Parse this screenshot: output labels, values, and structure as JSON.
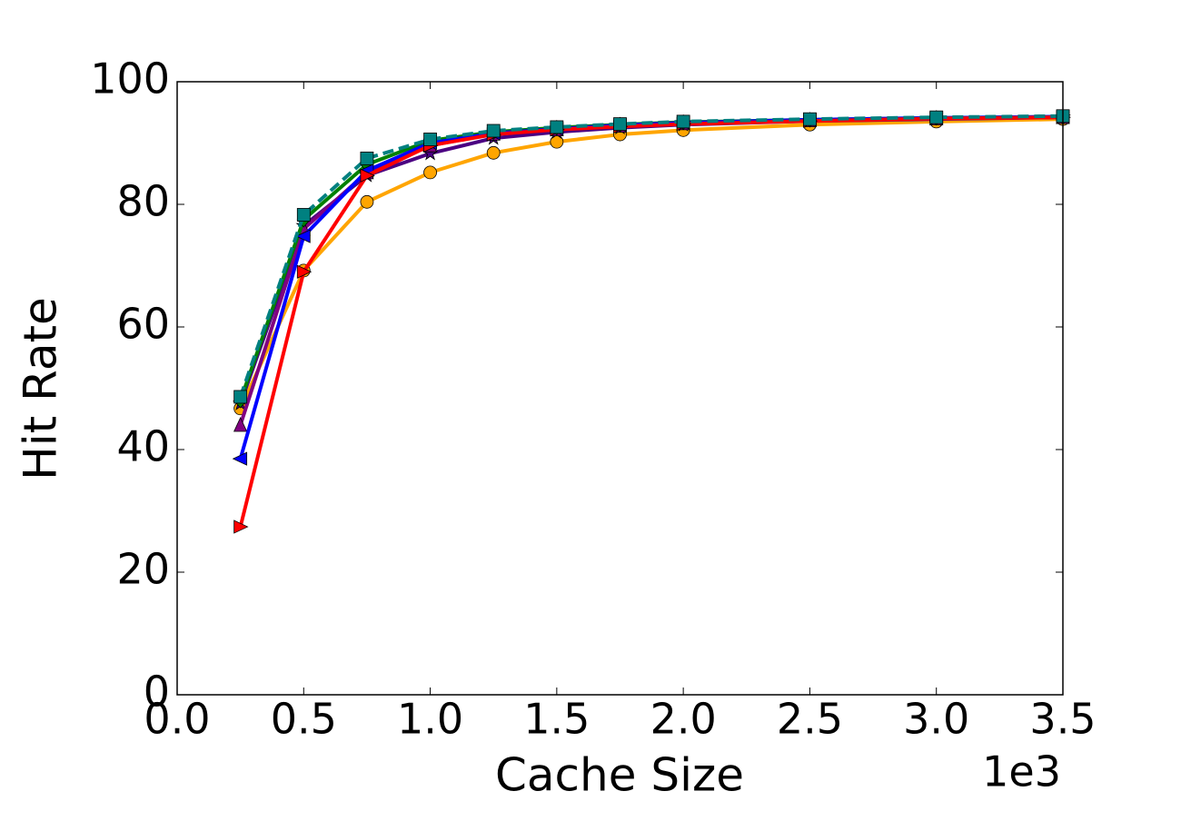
{
  "chart_data": {
    "type": "line",
    "xlabel": "Cache Size",
    "ylabel": "Hit Rate",
    "x_offset_label": "1e3",
    "x": [
      0.25,
      0.5,
      0.75,
      1.0,
      1.25,
      1.5,
      1.75,
      2.0,
      2.5,
      3.0,
      3.5
    ],
    "xlim": [
      0,
      3.5
    ],
    "xticks": [
      {
        "value": 0,
        "label": "0.0"
      },
      {
        "value": 0.5,
        "label": "0.5"
      },
      {
        "value": 1,
        "label": "1.0"
      },
      {
        "value": 1.5,
        "label": "1.5"
      },
      {
        "value": 2,
        "label": "2.0"
      },
      {
        "value": 2.5,
        "label": "2.5"
      },
      {
        "value": 3,
        "label": "3.0"
      },
      {
        "value": 3.5,
        "label": "3.5"
      }
    ],
    "ylim": [
      0,
      100
    ],
    "yticks": [
      0,
      20,
      40,
      60,
      80,
      100
    ],
    "grid": false,
    "series": [
      {
        "color": "#ffa500",
        "marker": "circle",
        "dashed": false,
        "values": [
          46.7,
          69.2,
          80.4,
          85.2,
          88.4,
          90.2,
          91.4,
          92.1,
          93.0,
          93.5,
          93.9
        ]
      },
      {
        "color": "#4b0082",
        "marker": "star",
        "dashed": false,
        "values": [
          47.5,
          76.5,
          84.7,
          88.3,
          90.8,
          91.8,
          92.5,
          93.0,
          93.6,
          93.9,
          94.2
        ]
      },
      {
        "color": "#800080",
        "marker": "triangle-up",
        "dashed": false,
        "values": [
          44.0,
          76.0,
          85.2,
          89.6,
          91.5,
          92.2,
          92.8,
          93.2,
          93.7,
          94.0,
          94.2
        ]
      },
      {
        "color": "#008000",
        "marker": "diamond",
        "dashed": false,
        "values": [
          48.0,
          77.5,
          86.5,
          90.4,
          91.8,
          92.5,
          93.0,
          93.4,
          93.8,
          94.1,
          94.3
        ]
      },
      {
        "color": "#0000ff",
        "marker": "triangle-left",
        "dashed": false,
        "values": [
          38.5,
          74.8,
          85.5,
          90.0,
          91.6,
          92.3,
          92.9,
          93.3,
          93.8,
          94.1,
          94.3
        ]
      },
      {
        "color": "#ff0000",
        "marker": "triangle-right",
        "dashed": false,
        "values": [
          27.4,
          69.0,
          84.7,
          89.6,
          91.4,
          92.2,
          92.7,
          93.1,
          93.6,
          94.0,
          94.2
        ]
      },
      {
        "color": "#008080",
        "marker": "square",
        "dashed": true,
        "values": [
          48.6,
          78.3,
          87.5,
          90.6,
          92.0,
          92.6,
          93.1,
          93.5,
          93.9,
          94.2,
          94.4
        ]
      }
    ]
  }
}
